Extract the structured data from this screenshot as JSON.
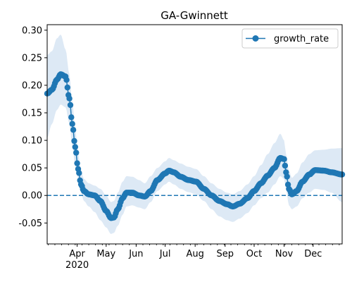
{
  "chart_data": {
    "type": "line",
    "title": "GA-Gwinnett",
    "xlabel": "",
    "ylabel": "",
    "x_start": "2020-03-01",
    "x_end": "2020-12-31",
    "ylim": [
      -0.088,
      0.31
    ],
    "y_ticks": [
      "-0.05",
      "0.00",
      "0.05",
      "0.10",
      "0.15",
      "0.20",
      "0.25",
      "0.30"
    ],
    "y_tick_values": [
      -0.05,
      0.0,
      0.05,
      0.1,
      0.15,
      0.2,
      0.25,
      0.3
    ],
    "x_ticks": [
      {
        "date": "2020-04-01",
        "label": "Apr",
        "sublabel": "2020"
      },
      {
        "date": "2020-05-01",
        "label": "May",
        "sublabel": ""
      },
      {
        "date": "2020-06-01",
        "label": "Jun",
        "sublabel": ""
      },
      {
        "date": "2020-07-01",
        "label": "Jul",
        "sublabel": ""
      },
      {
        "date": "2020-08-01",
        "label": "Aug",
        "sublabel": ""
      },
      {
        "date": "2020-09-01",
        "label": "Sep",
        "sublabel": ""
      },
      {
        "date": "2020-10-01",
        "label": "Oct",
        "sublabel": ""
      },
      {
        "date": "2020-11-01",
        "label": "Nov",
        "sublabel": ""
      },
      {
        "date": "2020-12-01",
        "label": "Dec",
        "sublabel": ""
      }
    ],
    "reference_line": {
      "y": 0.0,
      "style": "dashed",
      "color": "#1f77b4"
    },
    "legend": {
      "position": "top-right",
      "entries": [
        "growth_rate"
      ]
    },
    "series": [
      {
        "name": "growth_rate",
        "color": "#1f77b4",
        "band_color": "#dde9f5",
        "anchors": [
          {
            "date": "2020-03-01",
            "y": 0.185,
            "lo": 0.105,
            "hi": 0.255
          },
          {
            "date": "2020-03-06",
            "y": 0.192,
            "lo": 0.13,
            "hi": 0.262
          },
          {
            "date": "2020-03-11",
            "y": 0.21,
            "lo": 0.155,
            "hi": 0.285
          },
          {
            "date": "2020-03-15",
            "y": 0.22,
            "lo": 0.165,
            "hi": 0.292
          },
          {
            "date": "2020-03-20",
            "y": 0.216,
            "lo": 0.16,
            "hi": 0.265
          },
          {
            "date": "2020-03-24",
            "y": 0.176,
            "lo": 0.13,
            "hi": 0.22
          },
          {
            "date": "2020-03-27",
            "y": 0.13,
            "lo": 0.09,
            "hi": 0.17
          },
          {
            "date": "2020-03-30",
            "y": 0.088,
            "lo": 0.055,
            "hi": 0.12
          },
          {
            "date": "2020-04-02",
            "y": 0.048,
            "lo": 0.03,
            "hi": 0.075
          },
          {
            "date": "2020-04-05",
            "y": 0.02,
            "lo": 0.005,
            "hi": 0.045
          },
          {
            "date": "2020-04-08",
            "y": 0.008,
            "lo": -0.01,
            "hi": 0.03
          },
          {
            "date": "2020-04-13",
            "y": 0.002,
            "lo": -0.02,
            "hi": 0.022
          },
          {
            "date": "2020-04-19",
            "y": 0.0,
            "lo": -0.03,
            "hi": 0.018
          },
          {
            "date": "2020-04-25",
            "y": -0.01,
            "lo": -0.045,
            "hi": 0.012
          },
          {
            "date": "2020-05-01",
            "y": -0.028,
            "lo": -0.058,
            "hi": 0.0
          },
          {
            "date": "2020-05-06",
            "y": -0.041,
            "lo": -0.07,
            "hi": -0.012
          },
          {
            "date": "2020-05-09",
            "y": -0.04,
            "lo": -0.068,
            "hi": -0.01
          },
          {
            "date": "2020-05-13",
            "y": -0.025,
            "lo": -0.055,
            "hi": 0.005
          },
          {
            "date": "2020-05-18",
            "y": -0.005,
            "lo": -0.035,
            "hi": 0.025
          },
          {
            "date": "2020-05-22",
            "y": 0.005,
            "lo": -0.02,
            "hi": 0.035
          },
          {
            "date": "2020-05-28",
            "y": 0.005,
            "lo": -0.018,
            "hi": 0.034
          },
          {
            "date": "2020-06-04",
            "y": 0.0,
            "lo": -0.022,
            "hi": 0.028
          },
          {
            "date": "2020-06-10",
            "y": -0.002,
            "lo": -0.025,
            "hi": 0.022
          },
          {
            "date": "2020-06-16",
            "y": 0.008,
            "lo": -0.012,
            "hi": 0.035
          },
          {
            "date": "2020-06-23",
            "y": 0.028,
            "lo": 0.008,
            "hi": 0.05
          },
          {
            "date": "2020-07-01",
            "y": 0.04,
            "lo": 0.02,
            "hi": 0.062
          },
          {
            "date": "2020-07-05",
            "y": 0.045,
            "lo": 0.025,
            "hi": 0.068
          },
          {
            "date": "2020-07-10",
            "y": 0.042,
            "lo": 0.02,
            "hi": 0.064
          },
          {
            "date": "2020-07-17",
            "y": 0.034,
            "lo": 0.012,
            "hi": 0.058
          },
          {
            "date": "2020-07-25",
            "y": 0.028,
            "lo": 0.006,
            "hi": 0.052
          },
          {
            "date": "2020-08-02",
            "y": 0.025,
            "lo": 0.002,
            "hi": 0.048
          },
          {
            "date": "2020-08-10",
            "y": 0.012,
            "lo": -0.01,
            "hi": 0.035
          },
          {
            "date": "2020-08-18",
            "y": 0.0,
            "lo": -0.025,
            "hi": 0.022
          },
          {
            "date": "2020-08-26",
            "y": -0.01,
            "lo": -0.038,
            "hi": 0.012
          },
          {
            "date": "2020-09-03",
            "y": -0.016,
            "lo": -0.045,
            "hi": 0.005
          },
          {
            "date": "2020-09-09",
            "y": -0.02,
            "lo": -0.048,
            "hi": 0.002
          },
          {
            "date": "2020-09-16",
            "y": -0.015,
            "lo": -0.042,
            "hi": 0.008
          },
          {
            "date": "2020-09-24",
            "y": -0.005,
            "lo": -0.032,
            "hi": 0.02
          },
          {
            "date": "2020-10-01",
            "y": 0.008,
            "lo": -0.018,
            "hi": 0.035
          },
          {
            "date": "2020-10-08",
            "y": 0.022,
            "lo": -0.005,
            "hi": 0.055
          },
          {
            "date": "2020-10-15",
            "y": 0.036,
            "lo": 0.005,
            "hi": 0.075
          },
          {
            "date": "2020-10-22",
            "y": 0.05,
            "lo": 0.02,
            "hi": 0.095
          },
          {
            "date": "2020-10-28",
            "y": 0.068,
            "lo": 0.035,
            "hi": 0.112
          },
          {
            "date": "2020-11-01",
            "y": 0.066,
            "lo": 0.03,
            "hi": 0.1
          },
          {
            "date": "2020-11-03",
            "y": 0.042,
            "lo": 0.01,
            "hi": 0.075
          },
          {
            "date": "2020-11-06",
            "y": 0.012,
            "lo": -0.018,
            "hi": 0.045
          },
          {
            "date": "2020-11-09",
            "y": 0.002,
            "lo": -0.025,
            "hi": 0.032
          },
          {
            "date": "2020-11-14",
            "y": 0.008,
            "lo": -0.02,
            "hi": 0.04
          },
          {
            "date": "2020-11-20",
            "y": 0.025,
            "lo": -0.005,
            "hi": 0.06
          },
          {
            "date": "2020-11-27",
            "y": 0.038,
            "lo": 0.005,
            "hi": 0.075
          },
          {
            "date": "2020-12-03",
            "y": 0.046,
            "lo": 0.012,
            "hi": 0.082
          },
          {
            "date": "2020-12-12",
            "y": 0.045,
            "lo": 0.01,
            "hi": 0.083
          },
          {
            "date": "2020-12-20",
            "y": 0.042,
            "lo": 0.005,
            "hi": 0.085
          },
          {
            "date": "2020-12-31",
            "y": 0.038,
            "lo": -0.012,
            "hi": 0.086
          }
        ]
      }
    ]
  }
}
